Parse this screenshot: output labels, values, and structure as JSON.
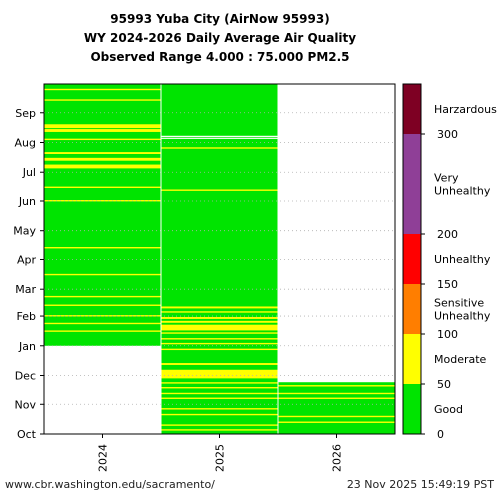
{
  "title": {
    "line1": "95993 Yuba City (AirNow 95993)",
    "line2": "WY 2024-2026 Daily Average Air Quality",
    "line3": "Observed Range 4.000 : 75.000 PM2.5"
  },
  "footer": {
    "source": "www.cbr.washington.edu/sacramento/",
    "timestamp": "23 Nov 2025 15:49:19 PST"
  },
  "colors": {
    "good": "#00e400",
    "moderate": "#ffff00",
    "sensitive": "#ff7e00",
    "unhealthy": "#ff0000",
    "very_unhealthy": "#8f3f97",
    "hazardous": "#7e0023"
  },
  "chart_data": {
    "type": "heatmap",
    "x": [
      "2024",
      "2025",
      "2026"
    ],
    "y_ticks": [
      "Oct",
      "Nov",
      "Dec",
      "Jan",
      "Feb",
      "Mar",
      "Apr",
      "May",
      "Jun",
      "Jul",
      "Aug",
      "Sep"
    ],
    "y_axis": "day of water year (Oct 1 to Sep 30)",
    "grid": true,
    "series": [
      {
        "name": "2024",
        "data_start": "Jan",
        "moderate_bands": [
          [
            "Jan 16",
            "Jan 17"
          ],
          [
            "Jan 24",
            "Jan 25"
          ],
          [
            "Feb 1",
            "Feb 2"
          ],
          [
            "Feb 12",
            "Feb 13"
          ],
          [
            "Feb 21",
            "Feb 22"
          ],
          [
            "Mar 16",
            "Mar 17"
          ],
          [
            "Apr 13",
            "Apr 14"
          ],
          [
            "Jun 1",
            "Jun 2"
          ],
          [
            "Jun 15",
            "Jun 16"
          ],
          [
            "Jul 5",
            "Jul 9"
          ],
          [
            "Jul 13",
            "Jul 16"
          ],
          [
            "Jul 20",
            "Jul 22"
          ],
          [
            "Aug 4",
            "Aug 5"
          ],
          [
            "Aug 12",
            "Aug 15"
          ],
          [
            "Aug 16",
            "Aug 20"
          ],
          [
            "Sep 14",
            "Sep 15"
          ],
          [
            "Sep 25",
            "Sep 26"
          ]
        ]
      },
      {
        "name": "2025",
        "moderate_bands": [
          [
            "Oct 5",
            "Oct 6"
          ],
          [
            "Oct 10",
            "Oct 11"
          ],
          [
            "Oct 21",
            "Oct 22"
          ],
          [
            "Oct 27",
            "Oct 28"
          ],
          [
            "Nov 7",
            "Nov 8"
          ],
          [
            "Nov 12",
            "Nov 13"
          ],
          [
            "Nov 18",
            "Nov 19"
          ],
          [
            "Nov 23",
            "Nov 24"
          ],
          [
            "Nov 28",
            "Dec 7"
          ],
          [
            "Dec 12",
            "Dec 14"
          ],
          [
            "Dec 28",
            "Dec 29"
          ],
          [
            "Jan 3",
            "Jan 4"
          ],
          [
            "Jan 8",
            "Jan 9"
          ],
          [
            "Jan 14",
            "Jan 15"
          ],
          [
            "Jan 17",
            "Jan 23"
          ],
          [
            "Jan 25",
            "Jan 27"
          ],
          [
            "Jan 29",
            "Jan 31"
          ],
          [
            "Feb 5",
            "Feb 6"
          ],
          [
            "Feb 9",
            "Feb 11"
          ],
          [
            "Jun 12",
            "Jun 13"
          ],
          [
            "Jul 26",
            "Jul 27"
          ]
        ],
        "missing_bands": [
          [
            "Aug 5",
            "Aug 6"
          ],
          [
            "Aug 7",
            "Aug 8"
          ]
        ]
      },
      {
        "name": "2026",
        "data_end": "Nov 23",
        "moderate_bands": [
          [
            "Oct 13",
            "Oct 14"
          ],
          [
            "Oct 19",
            "Oct 20"
          ],
          [
            "Nov 7",
            "Nov 8"
          ],
          [
            "Nov 12",
            "Nov 13"
          ],
          [
            "Nov 20",
            "Nov 21"
          ]
        ]
      }
    ],
    "colorbar": {
      "range": [
        0,
        350
      ],
      "ticks": [
        0,
        50,
        100,
        150,
        200,
        300
      ],
      "categories": [
        {
          "label": "Good",
          "from": 0,
          "to": 50,
          "color": "#00e400"
        },
        {
          "label": "Moderate",
          "from": 50,
          "to": 100,
          "color": "#ffff00"
        },
        {
          "label": "Sensitive\nUnhealthy",
          "from": 100,
          "to": 150,
          "color": "#ff7e00"
        },
        {
          "label": "Unhealthy",
          "from": 150,
          "to": 200,
          "color": "#ff0000"
        },
        {
          "label": "Very\nUnhealthy",
          "from": 200,
          "to": 300,
          "color": "#8f3f97"
        },
        {
          "label": "Harzardous",
          "from": 300,
          "to": 350,
          "color": "#7e0023"
        }
      ]
    }
  }
}
